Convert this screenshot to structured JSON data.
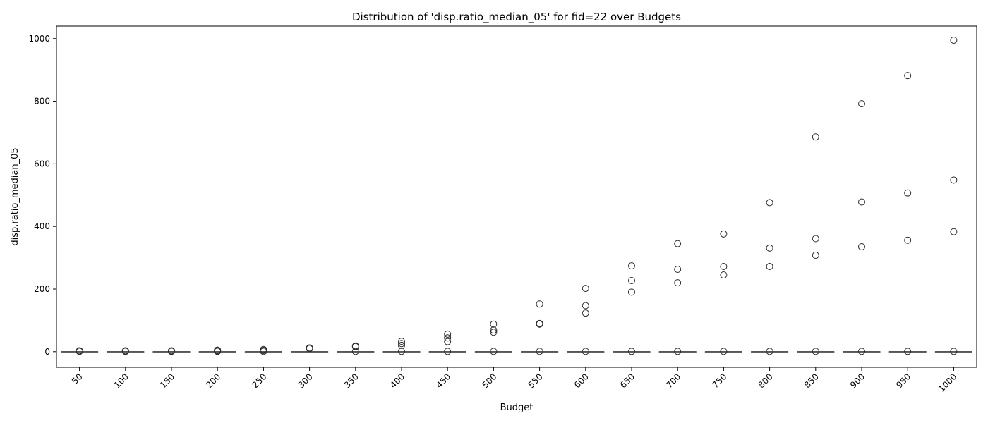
{
  "chart_data": {
    "type": "box",
    "title": "Distribution of 'disp.ratio_median_05' for fid=22 over Budgets",
    "xlabel": "Budget",
    "ylabel": "disp.ratio_median_05",
    "ylim": [
      -50,
      1040
    ],
    "y_ticks": [
      0,
      200,
      400,
      600,
      800,
      1000
    ],
    "grid": false,
    "legend": "none",
    "colors": {
      "box_edge": "#3a3a3a",
      "outlier_edge": "#2a2a2a",
      "axis": "#000000"
    },
    "categories": [
      "50",
      "100",
      "150",
      "200",
      "250",
      "300",
      "350",
      "400",
      "450",
      "500",
      "550",
      "600",
      "650",
      "700",
      "750",
      "800",
      "850",
      "900",
      "950",
      "1000"
    ],
    "boxes": [
      {
        "category": "50",
        "median": 0,
        "q1": 0,
        "q3": 0,
        "whisker_low": 0,
        "whisker_high": 0,
        "outliers": [
          1,
          2,
          3
        ]
      },
      {
        "category": "100",
        "median": 0,
        "q1": 0,
        "q3": 0,
        "whisker_low": 0,
        "whisker_high": 0,
        "outliers": [
          1,
          2,
          3
        ]
      },
      {
        "category": "150",
        "median": 0,
        "q1": 0,
        "q3": 0,
        "whisker_low": 0,
        "whisker_high": 0,
        "outliers": [
          1,
          2,
          3
        ]
      },
      {
        "category": "200",
        "median": 0,
        "q1": 0,
        "q3": 0,
        "whisker_low": 0,
        "whisker_high": 0,
        "outliers": [
          1,
          3,
          5
        ]
      },
      {
        "category": "250",
        "median": 0,
        "q1": 0,
        "q3": 0,
        "whisker_low": 0,
        "whisker_high": 0,
        "outliers": [
          1,
          4,
          7
        ]
      },
      {
        "category": "300",
        "median": 0,
        "q1": 0,
        "q3": 0,
        "whisker_low": 0,
        "whisker_high": 0,
        "outliers": [
          10,
          11,
          12
        ]
      },
      {
        "category": "350",
        "median": 0,
        "q1": 0,
        "q3": 0,
        "whisker_low": 0,
        "whisker_high": 0,
        "outliers": [
          1,
          16,
          18
        ]
      },
      {
        "category": "400",
        "median": 0,
        "q1": 0,
        "q3": 0,
        "whisker_low": 0,
        "whisker_high": 0,
        "outliers": [
          1,
          20,
          26,
          33
        ]
      },
      {
        "category": "450",
        "median": 0,
        "q1": 0,
        "q3": 0,
        "whisker_low": 0,
        "whisker_high": 0,
        "outliers": [
          1,
          32,
          44,
          56
        ]
      },
      {
        "category": "500",
        "median": 0,
        "q1": 0,
        "q3": 0,
        "whisker_low": 0,
        "whisker_high": 0,
        "outliers": [
          1,
          62,
          69,
          88
        ]
      },
      {
        "category": "550",
        "median": 0,
        "q1": 0,
        "q3": 0,
        "whisker_low": 0,
        "whisker_high": 0,
        "outliers": [
          1,
          88,
          90,
          152
        ]
      },
      {
        "category": "600",
        "median": 0,
        "q1": 0,
        "q3": 0,
        "whisker_low": 0,
        "whisker_high": 0,
        "outliers": [
          1,
          123,
          147,
          202
        ]
      },
      {
        "category": "650",
        "median": 0,
        "q1": 0,
        "q3": 0,
        "whisker_low": 0,
        "whisker_high": 0,
        "outliers": [
          1,
          190,
          227,
          274
        ]
      },
      {
        "category": "700",
        "median": 0,
        "q1": 0,
        "q3": 0,
        "whisker_low": 0,
        "whisker_high": 0,
        "outliers": [
          1,
          220,
          263,
          345
        ]
      },
      {
        "category": "750",
        "median": 0,
        "q1": 0,
        "q3": 0,
        "whisker_low": 0,
        "whisker_high": 0,
        "outliers": [
          1,
          245,
          272,
          376
        ]
      },
      {
        "category": "800",
        "median": 0,
        "q1": 0,
        "q3": 0,
        "whisker_low": 0,
        "whisker_high": 0,
        "outliers": [
          1,
          272,
          331,
          476
        ]
      },
      {
        "category": "850",
        "median": 0,
        "q1": 0,
        "q3": 0,
        "whisker_low": 0,
        "whisker_high": 0,
        "outliers": [
          1,
          308,
          361,
          686
        ]
      },
      {
        "category": "900",
        "median": 0,
        "q1": 0,
        "q3": 0,
        "whisker_low": 0,
        "whisker_high": 0,
        "outliers": [
          1,
          335,
          478,
          792
        ]
      },
      {
        "category": "950",
        "median": 0,
        "q1": 0,
        "q3": 0,
        "whisker_low": 0,
        "whisker_high": 0,
        "outliers": [
          1,
          356,
          507,
          882
        ]
      },
      {
        "category": "1000",
        "median": 0,
        "q1": 0,
        "q3": 0,
        "whisker_low": 0,
        "whisker_high": 0,
        "outliers": [
          1,
          383,
          548,
          995
        ]
      }
    ]
  }
}
